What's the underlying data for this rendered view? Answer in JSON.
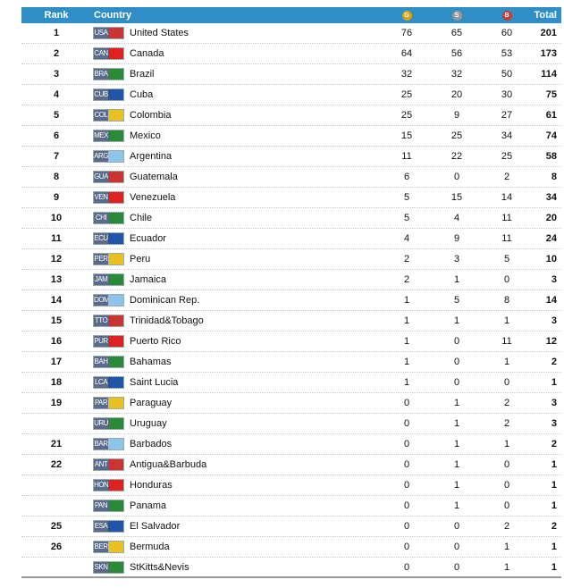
{
  "table": {
    "header": [
      "Rank",
      "Country",
      "G",
      "S",
      "B",
      "Total"
    ],
    "rows": [
      [
        1,
        "USA",
        "United States",
        76,
        65,
        60,
        201
      ],
      [
        2,
        "CAN",
        "Canada",
        64,
        56,
        53,
        173
      ],
      [
        3,
        "BRA",
        "Brazil",
        32,
        32,
        50,
        114
      ],
      [
        4,
        "CUB",
        "Cuba",
        25,
        20,
        30,
        75
      ],
      [
        5,
        "COL",
        "Colombia",
        25,
        9,
        27,
        61
      ],
      [
        6,
        "MEX",
        "Mexico",
        15,
        25,
        34,
        74
      ],
      [
        7,
        "ARG",
        "Argentina",
        11,
        22,
        25,
        58
      ],
      [
        8,
        "GUA",
        "Guatemala",
        6,
        0,
        2,
        8
      ],
      [
        9,
        "VEN",
        "Venezuela",
        5,
        15,
        14,
        34
      ],
      [
        10,
        "CHI",
        "Chile",
        5,
        4,
        11,
        20
      ],
      [
        11,
        "ECU",
        "Ecuador",
        4,
        9,
        11,
        24
      ],
      [
        12,
        "PER",
        "Peru",
        2,
        3,
        5,
        10
      ],
      [
        13,
        "JAM",
        "Jamaica",
        2,
        1,
        0,
        3
      ],
      [
        14,
        "DOM",
        "Dominican Rep.",
        1,
        5,
        8,
        14
      ],
      [
        15,
        "TTO",
        "Trinidad&Tobago",
        1,
        1,
        1,
        3
      ],
      [
        16,
        "PUR",
        "Puerto Rico",
        1,
        0,
        11,
        12
      ],
      [
        17,
        "BAH",
        "Bahamas",
        1,
        0,
        1,
        2
      ],
      [
        18,
        "LCA",
        "Saint Lucia",
        1,
        0,
        0,
        1
      ],
      [
        19,
        "PAR",
        "Paraguay",
        0,
        1,
        2,
        3
      ],
      [
        null,
        "URU",
        "Uruguay",
        0,
        1,
        2,
        3
      ],
      [
        21,
        "BAR",
        "Barbados",
        0,
        1,
        1,
        2
      ],
      [
        22,
        "ANT",
        "Antigua&Barbuda",
        0,
        1,
        0,
        1
      ],
      [
        null,
        "HON",
        "Honduras",
        0,
        1,
        0,
        1
      ],
      [
        null,
        "PAN",
        "Panama",
        0,
        1,
        0,
        1
      ],
      [
        25,
        "ESA",
        "El Salvador",
        0,
        0,
        2,
        2
      ],
      [
        26,
        "BER",
        "Bermuda",
        0,
        0,
        1,
        1
      ],
      [
        null,
        "SKN",
        "StKitts&Nevis",
        0,
        0,
        1,
        1
      ]
    ]
  }
}
